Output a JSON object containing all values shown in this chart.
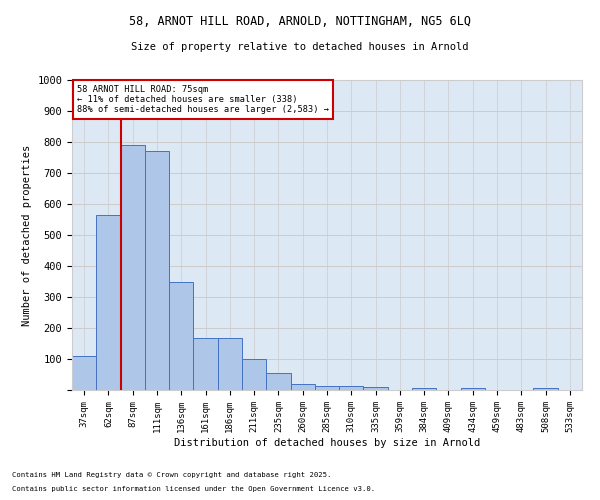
{
  "title_line1": "58, ARNOT HILL ROAD, ARNOLD, NOTTINGHAM, NG5 6LQ",
  "title_line2": "Size of property relative to detached houses in Arnold",
  "xlabel": "Distribution of detached houses by size in Arnold",
  "ylabel": "Number of detached properties",
  "categories": [
    "37sqm",
    "62sqm",
    "87sqm",
    "111sqm",
    "136sqm",
    "161sqm",
    "186sqm",
    "211sqm",
    "235sqm",
    "260sqm",
    "285sqm",
    "310sqm",
    "335sqm",
    "359sqm",
    "384sqm",
    "409sqm",
    "434sqm",
    "459sqm",
    "483sqm",
    "508sqm",
    "533sqm"
  ],
  "values": [
    110,
    565,
    790,
    770,
    350,
    167,
    167,
    100,
    55,
    18,
    12,
    12,
    10,
    0,
    5,
    0,
    5,
    0,
    0,
    5,
    0
  ],
  "bar_color": "#aec6e8",
  "bar_edge_color": "#4472c4",
  "vline_x_index": 1.5,
  "vline_color": "#cc0000",
  "annotation_title": "58 ARNOT HILL ROAD: 75sqm",
  "annotation_line1": "← 11% of detached houses are smaller (338)",
  "annotation_line2": "88% of semi-detached houses are larger (2,583) →",
  "annotation_box_color": "#cc0000",
  "ylim": [
    0,
    1000
  ],
  "yticks": [
    0,
    100,
    200,
    300,
    400,
    500,
    600,
    700,
    800,
    900,
    1000
  ],
  "grid_color": "#cccccc",
  "bg_color": "#dce9f5",
  "footnote1": "Contains HM Land Registry data © Crown copyright and database right 2025.",
  "footnote2": "Contains public sector information licensed under the Open Government Licence v3.0."
}
